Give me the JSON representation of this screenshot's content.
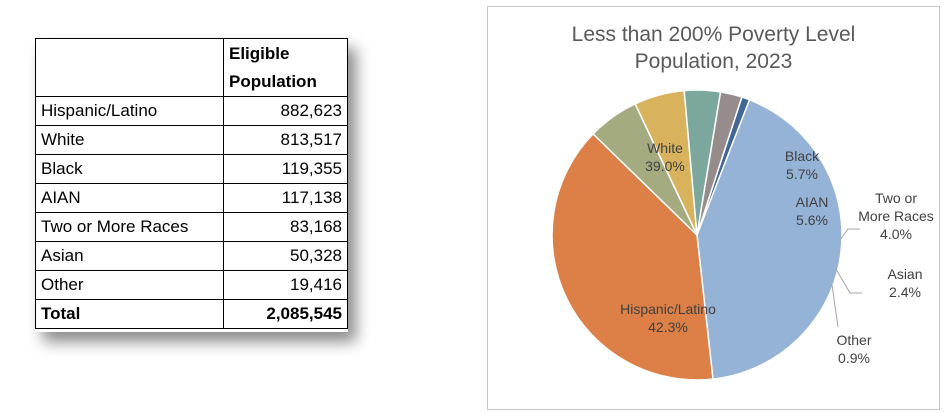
{
  "table": {
    "header": [
      "",
      "Eligible",
      "Population"
    ],
    "rows": [
      {
        "name": "Hispanic/Latino",
        "value": "882,623"
      },
      {
        "name": "White",
        "value": "813,517"
      },
      {
        "name": "Black",
        "value": "119,355"
      },
      {
        "name": "AIAN",
        "value": "117,138"
      },
      {
        "name": "Two or More Races",
        "value": "83,168"
      },
      {
        "name": "Asian",
        "value": "50,328"
      },
      {
        "name": "Other",
        "value": "19,416"
      }
    ],
    "total": {
      "name": "Total",
      "value": "2,085,545"
    }
  },
  "chart_data": {
    "type": "pie",
    "title_lines": [
      "Less than 200% Poverty Level",
      "Population, 2023"
    ],
    "slices": [
      {
        "label": "Hispanic/Latino",
        "percent_label": "42.3%",
        "value": 42.3,
        "color": "#95b3d7"
      },
      {
        "label": "White",
        "percent_label": "39.0%",
        "value": 39.0,
        "color": "#dd8047"
      },
      {
        "label": "Black",
        "percent_label": "5.7%",
        "value": 5.7,
        "color": "#a5ab81"
      },
      {
        "label": "AIAN",
        "percent_label": "5.6%",
        "value": 5.6,
        "color": "#d8b25c"
      },
      {
        "label": "Two or More Races",
        "percent_label": "4.0%",
        "value": 4.0,
        "color": "#7ba79d"
      },
      {
        "label": "Asian",
        "percent_label": "2.4%",
        "value": 2.4,
        "color": "#968c8c"
      },
      {
        "label": "Other",
        "percent_label": "0.9%",
        "value": 0.9,
        "color": "#3f6797"
      }
    ]
  }
}
